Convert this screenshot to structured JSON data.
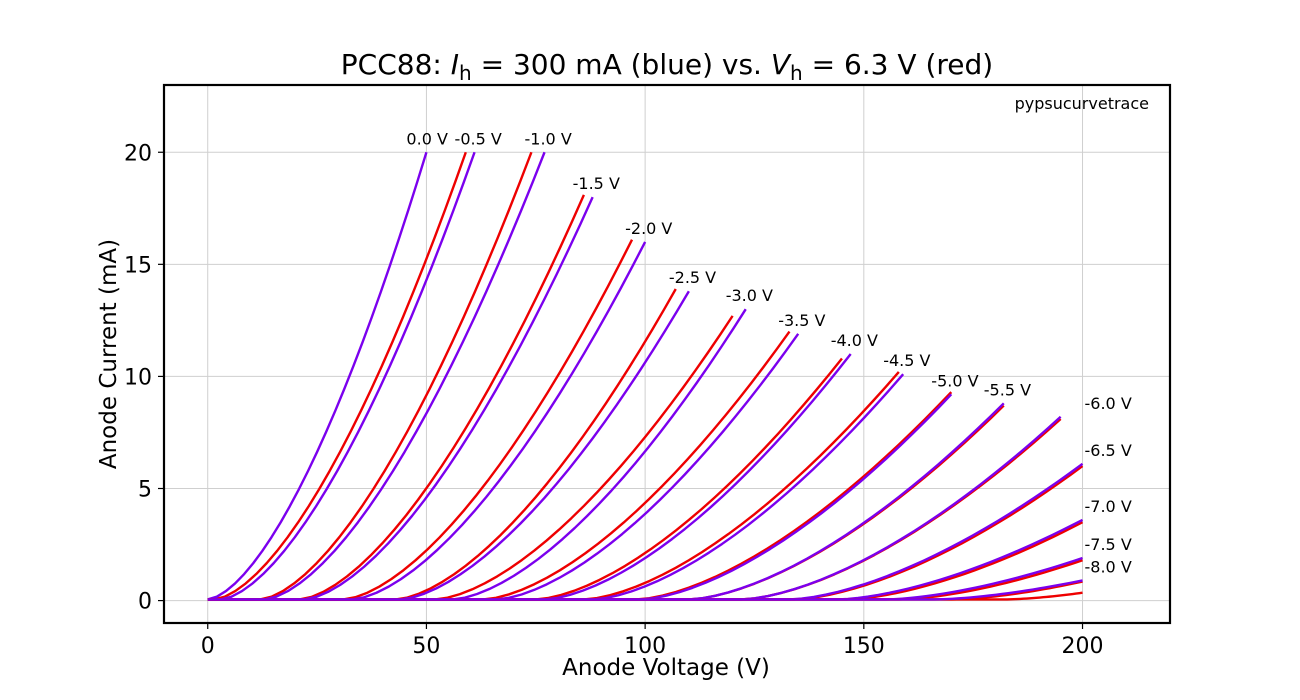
{
  "chart_data": {
    "type": "line",
    "title_parts": {
      "prefix": "PCC88: ",
      "var1": "I",
      "sub1": "h",
      "mid": " = 300 mA (blue) vs. ",
      "var2": "V",
      "sub2": "h",
      "suffix": " = 6.3 V (red)"
    },
    "xlabel": "Anode Voltage (V)",
    "ylabel": "Anode Current (mA)",
    "xlim": [
      -10,
      220
    ],
    "ylim": [
      -1,
      23
    ],
    "xticks": [
      0,
      50,
      100,
      150,
      200
    ],
    "yticks": [
      0,
      5,
      10,
      15,
      20
    ],
    "grid": true,
    "annotation": "pypsucurvetrace",
    "colors": {
      "blue": "#7b00ee",
      "red": "#ee0000"
    },
    "series": [
      {
        "grid_voltage": 0.0,
        "label": "0.0 V",
        "blue": {
          "v0": 0,
          "vend": 50,
          "iend": 20.0
        },
        "red": {
          "v0": 1.5,
          "vend": 59,
          "iend": 20.0
        }
      },
      {
        "grid_voltage": -0.5,
        "label": "-0.5 V",
        "blue": {
          "v0": 3,
          "vend": 61,
          "iend": 20.0
        },
        "red": {
          "v0": 12,
          "vend": 74,
          "iend": 20.0
        }
      },
      {
        "grid_voltage": -1.0,
        "label": "-1.0 V",
        "blue": {
          "v0": 13,
          "vend": 77,
          "iend": 20.0
        },
        "red": {
          "v0": 21,
          "vend": 86,
          "iend": 18.1
        }
      },
      {
        "grid_voltage": -1.5,
        "label": "-1.5 V",
        "blue": {
          "v0": 22,
          "vend": 88,
          "iend": 18.0
        },
        "red": {
          "v0": 31,
          "vend": 97,
          "iend": 16.1
        }
      },
      {
        "grid_voltage": -2.0,
        "label": "-2.0 V",
        "blue": {
          "v0": 33,
          "vend": 100,
          "iend": 16.0
        },
        "red": {
          "v0": 43,
          "vend": 107,
          "iend": 13.9
        }
      },
      {
        "grid_voltage": -2.5,
        "label": "-2.5 V",
        "blue": {
          "v0": 44,
          "vend": 110,
          "iend": 13.8
        },
        "red": {
          "v0": 52,
          "vend": 120,
          "iend": 12.7
        }
      },
      {
        "grid_voltage": -3.0,
        "label": "-3.0 V",
        "blue": {
          "v0": 56,
          "vend": 123,
          "iend": 13.0
        },
        "red": {
          "v0": 63,
          "vend": 133,
          "iend": 12.0
        }
      },
      {
        "grid_voltage": -3.5,
        "label": "-3.5 V",
        "blue": {
          "v0": 66,
          "vend": 135,
          "iend": 11.9
        },
        "red": {
          "v0": 75,
          "vend": 145,
          "iend": 10.8
        }
      },
      {
        "grid_voltage": -4.0,
        "label": "-4.0 V",
        "blue": {
          "v0": 77,
          "vend": 147,
          "iend": 11.0
        },
        "red": {
          "v0": 86,
          "vend": 158,
          "iend": 10.2
        }
      },
      {
        "grid_voltage": -4.5,
        "label": "-4.5 V",
        "blue": {
          "v0": 88,
          "vend": 159,
          "iend": 10.1
        },
        "red": {
          "v0": 98,
          "vend": 170,
          "iend": 9.3
        }
      },
      {
        "grid_voltage": -5.0,
        "label": "-5.0 V",
        "blue": {
          "v0": 99,
          "vend": 170,
          "iend": 9.2
        },
        "red": {
          "v0": 110,
          "vend": 182,
          "iend": 8.7
        }
      },
      {
        "grid_voltage": -5.5,
        "label": "-5.5 V",
        "blue": {
          "v0": 110,
          "vend": 182,
          "iend": 8.8
        },
        "red": {
          "v0": 122,
          "vend": 195,
          "iend": 8.1
        }
      },
      {
        "grid_voltage": -6.0,
        "label": "-6.0 V",
        "blue": {
          "v0": 122,
          "vend": 195,
          "iend": 8.2
        },
        "red": {
          "v0": 134,
          "vend": 200,
          "iend": 6.0
        }
      },
      {
        "grid_voltage": -6.5,
        "label": "-6.5 V",
        "blue": {
          "v0": 133,
          "vend": 200,
          "iend": 6.1
        },
        "red": {
          "v0": 146,
          "vend": 200,
          "iend": 3.5
        }
      },
      {
        "grid_voltage": -7.0,
        "label": "-7.0 V",
        "blue": {
          "v0": 144,
          "vend": 200,
          "iend": 3.6
        },
        "red": {
          "v0": 158,
          "vend": 200,
          "iend": 1.8
        }
      },
      {
        "grid_voltage": -7.5,
        "label": "-7.5 V",
        "blue": {
          "v0": 155,
          "vend": 200,
          "iend": 1.9
        },
        "red": {
          "v0": 170,
          "vend": 200,
          "iend": 0.85
        }
      },
      {
        "grid_voltage": -8.0,
        "label": "-8.0 V",
        "blue": {
          "v0": 166,
          "vend": 200,
          "iend": 0.9
        },
        "red": {
          "v0": 182,
          "vend": 200,
          "iend": 0.35
        }
      }
    ]
  }
}
